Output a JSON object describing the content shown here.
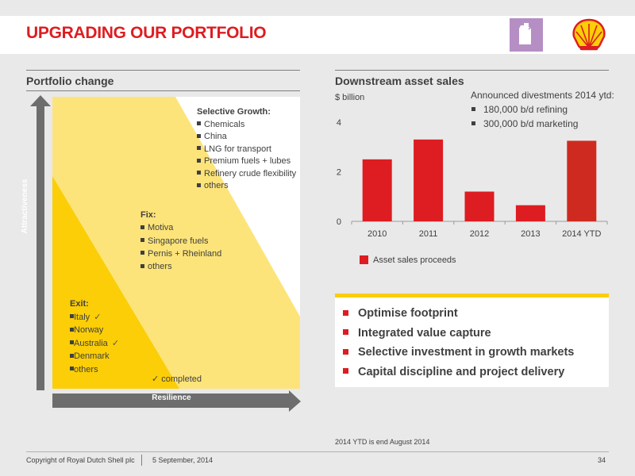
{
  "header": {
    "title": "UPGRADING OUR PORTFOLIO",
    "fuel_icon": "fuel-can-icon",
    "logo": "shell-pecten-logo",
    "colors": {
      "accent_red": "#dd1d21",
      "yellow": "#fbce07",
      "purple": "#b58fc4"
    }
  },
  "portfolio": {
    "title": "Portfolio change",
    "y_axis_label": "Attractiveness",
    "x_axis_label": "Resilience",
    "selective_growth": {
      "heading": "Selective Growth:",
      "items": [
        "Chemicals",
        "China",
        "LNG for transport",
        "Premium fuels + lubes",
        "Refinery crude flexibility",
        "others"
      ]
    },
    "fix": {
      "heading": "Fix:",
      "items": [
        "Motiva",
        "Singapore fuels",
        "Pernis + Rheinland",
        "others"
      ]
    },
    "exit": {
      "heading": "Exit:",
      "items": [
        "Italy",
        "Norway",
        "Australia",
        "Denmark",
        "others"
      ],
      "check": "✓"
    },
    "legend_completed": "✓ completed"
  },
  "downstream": {
    "title": "Downstream asset sales",
    "unit": "$ billion",
    "divestments": {
      "heading": "Announced divestments 2014 ytd:",
      "items": [
        "180,000 b/d refining",
        "300,000 b/d marketing"
      ]
    }
  },
  "chart_data": {
    "type": "bar",
    "categories": [
      "2010",
      "2011",
      "2012",
      "2013",
      "2014 YTD"
    ],
    "series": [
      {
        "name": "Asset sales proceeds",
        "values": [
          2.5,
          3.3,
          1.2,
          0.65,
          3.25
        ]
      }
    ],
    "ylabel": "$ billion",
    "ylim": [
      0,
      4
    ],
    "yticks": [
      "0",
      "2",
      "4"
    ],
    "grid": false,
    "legend": "bottom-left",
    "colors": [
      "#dd1d21",
      "#dd1d21",
      "#dd1d21",
      "#dd1d21",
      "#cf2a1f"
    ]
  },
  "summary": {
    "items": [
      "Optimise footprint",
      "Integrated value capture",
      "Selective investment in growth markets",
      "Capital discipline and project delivery"
    ]
  },
  "footnote": "2014 YTD is end August 2014",
  "footer": {
    "copyright": "Copyright of Royal Dutch Shell plc",
    "date": "5 September, 2014",
    "page": "34"
  }
}
